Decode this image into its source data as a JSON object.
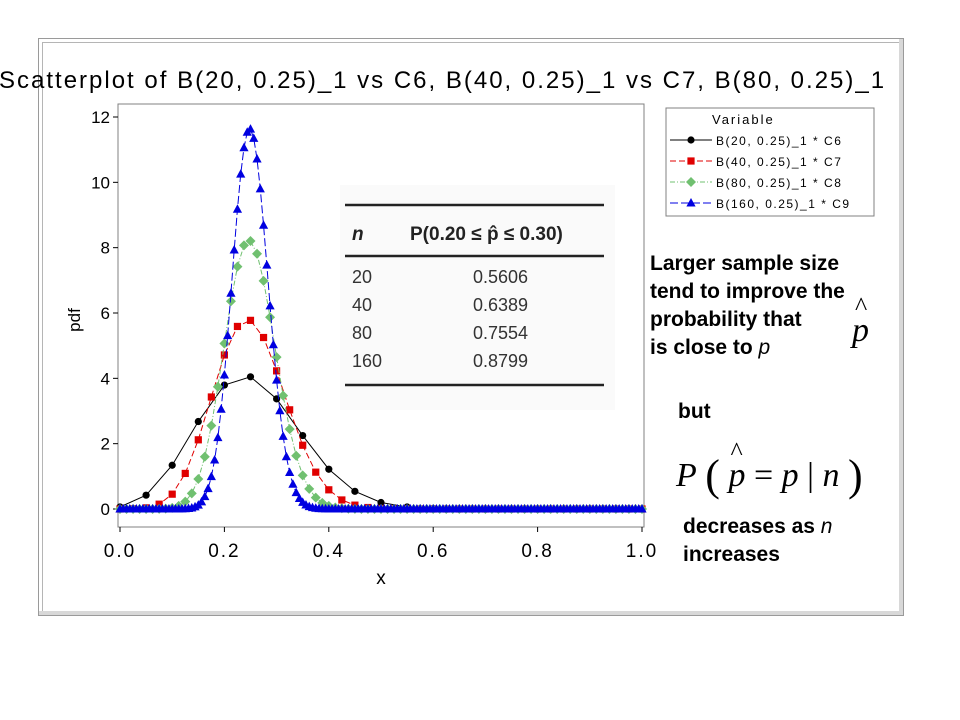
{
  "chart_data": {
    "type": "line",
    "title": "Scatterplot of B(20, 0.25)_1 vs C6, B(40, 0.25)_1 vs C7, B(80, 0.25)_1",
    "xlabel": "x",
    "ylabel": "pdf",
    "xlim": [
      0,
      1
    ],
    "ylim": [
      0,
      12
    ],
    "x_ticks": [
      "0.0",
      "0.2",
      "0.4",
      "0.6",
      "0.8",
      "1.0"
    ],
    "y_ticks": [
      "0",
      "2",
      "4",
      "6",
      "8",
      "10",
      "12"
    ],
    "legend_title": "Variable",
    "legend_position": "top-right",
    "series": [
      {
        "name": "B(20, 0.25)_1 * C6",
        "color": "#000000",
        "marker": "circle",
        "n": 20,
        "p": 0.25
      },
      {
        "name": "B(40, 0.25)_1 * C7",
        "color": "#e00000",
        "marker": "square",
        "n": 40,
        "p": 0.25
      },
      {
        "name": "B(80, 0.25)_1 * C8",
        "color": "#70c070",
        "marker": "diamond",
        "n": 80,
        "p": 0.25
      },
      {
        "name": "B(160, 0.25)_1 * C9",
        "color": "#0000e0",
        "marker": "triangle",
        "n": 160,
        "p": 0.25
      }
    ]
  },
  "table": {
    "headers": [
      "n",
      "P(0.20 ≤ p̂ ≤ 0.30)"
    ],
    "rows": [
      [
        "20",
        "0.5606"
      ],
      [
        "40",
        "0.6389"
      ],
      [
        "80",
        "0.7554"
      ],
      [
        "160",
        "0.8799"
      ]
    ]
  },
  "annotations": {
    "line1": "Larger sample size",
    "line2": "tend to improve the",
    "line3": "probability that",
    "line4_prefix": "is close to ",
    "line4_var": "p",
    "phat_symbol": "p",
    "but": "but",
    "formula_P": "P",
    "formula_phat": "p",
    "formula_eq": " = ",
    "formula_p": "p",
    "formula_bar": " | ",
    "formula_n": "n",
    "decreases_prefix": "decreases as ",
    "decreases_var": "n",
    "increases": "increases"
  }
}
